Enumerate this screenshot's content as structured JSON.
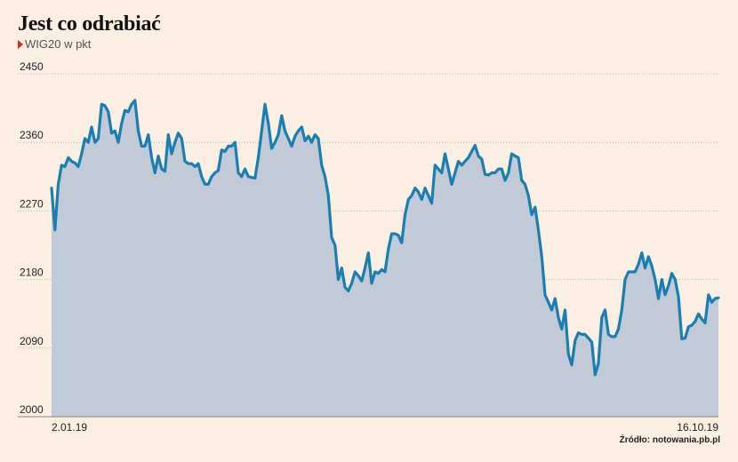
{
  "title": "Jest co odrabiać",
  "subtitle": "WIG20 w pkt",
  "source": "Źródło: notowania.pb.pl",
  "colors": {
    "line": "#1a7fb0",
    "area": "#c2cad7",
    "grid": "#b9b4ae",
    "marker": "#e0261b"
  },
  "chart_data": {
    "type": "area",
    "title": "Jest co odrabiać",
    "subtitle": "WIG20 w pkt",
    "ylim": [
      2000,
      2450
    ],
    "yticks": [
      2000,
      2090,
      2180,
      2270,
      2360,
      2450
    ],
    "x_start_label": "2.01.19",
    "x_end_label": "16.10.19",
    "grid": "horizontal dotted",
    "series": [
      {
        "values": [
          2300,
          2245,
          2305,
          2330,
          2328,
          2340,
          2335,
          2333,
          2328,
          2345,
          2365,
          2360,
          2380,
          2360,
          2365,
          2410,
          2408,
          2400,
          2372,
          2375,
          2360,
          2385,
          2402,
          2400,
          2410,
          2415,
          2375,
          2355,
          2355,
          2370,
          2340,
          2320,
          2342,
          2325,
          2322,
          2370,
          2345,
          2360,
          2372,
          2365,
          2335,
          2332,
          2332,
          2328,
          2332,
          2315,
          2305,
          2305,
          2315,
          2320,
          2323,
          2350,
          2348,
          2355,
          2355,
          2360,
          2320,
          2315,
          2325,
          2315,
          2314,
          2313,
          2340,
          2375,
          2410,
          2385,
          2352,
          2360,
          2370,
          2395,
          2375,
          2365,
          2355,
          2368,
          2375,
          2380,
          2362,
          2368,
          2360,
          2370,
          2365,
          2330,
          2315,
          2290,
          2235,
          2225,
          2180,
          2195,
          2170,
          2165,
          2175,
          2190,
          2185,
          2178,
          2195,
          2215,
          2175,
          2190,
          2188,
          2193,
          2190,
          2220,
          2240,
          2240,
          2238,
          2228,
          2265,
          2285,
          2290,
          2300,
          2295,
          2285,
          2300,
          2290,
          2280,
          2330,
          2325,
          2320,
          2345,
          2325,
          2305,
          2320,
          2335,
          2330,
          2335,
          2340,
          2348,
          2356,
          2342,
          2338,
          2318,
          2317,
          2320,
          2320,
          2325,
          2325,
          2310,
          2320,
          2345,
          2342,
          2340,
          2310,
          2305,
          2290,
          2265,
          2275,
          2245,
          2210,
          2160,
          2150,
          2140,
          2155,
          2130,
          2115,
          2140,
          2082,
          2068,
          2100,
          2110,
          2108,
          2108,
          2103,
          2098,
          2055,
          2070,
          2130,
          2140,
          2108,
          2105,
          2105,
          2115,
          2140,
          2180,
          2190,
          2190,
          2190,
          2200,
          2215,
          2195,
          2210,
          2198,
          2180,
          2155,
          2180,
          2160,
          2172,
          2188,
          2180,
          2158,
          2102,
          2103,
          2118,
          2120,
          2125,
          2135,
          2128,
          2123,
          2160,
          2150,
          2155,
          2156
        ]
      }
    ]
  }
}
